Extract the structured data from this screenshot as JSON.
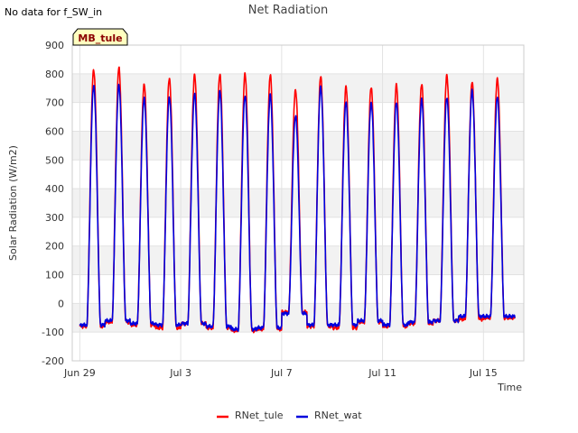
{
  "header": {
    "no_data_note": "No data for f_SW_in"
  },
  "chart_data": {
    "type": "line",
    "title": "Net Radiation",
    "xlabel": "Time",
    "ylabel": "Solar Radiation (W/m2)",
    "ylim": [
      -200,
      900
    ],
    "yticks": [
      -200,
      -100,
      0,
      100,
      200,
      300,
      400,
      500,
      600,
      700,
      800,
      900
    ],
    "xlim_days": [
      -0.3,
      17.6
    ],
    "xticks": [
      {
        "day": 0,
        "label": "Jun 29"
      },
      {
        "day": 4,
        "label": "Jul 3"
      },
      {
        "day": 8,
        "label": "Jul 7"
      },
      {
        "day": 12,
        "label": "Jul 11"
      },
      {
        "day": 16,
        "label": "Jul 15"
      }
    ],
    "grid": true,
    "band_style": "alternating grey horizontal bands",
    "site_badge": "MB_tule",
    "legend_position": "bottom-center",
    "series": [
      {
        "name": "RNet_tule",
        "color": "#ff0000",
        "daily_peaks": [
          815,
          820,
          765,
          785,
          795,
          800,
          800,
          795,
          745,
          790,
          755,
          755,
          760,
          765,
          795,
          770,
          785
        ],
        "night_values": [
          -80,
          -65,
          -75,
          -85,
          -70,
          -85,
          -95,
          -90,
          -30,
          -80,
          -85,
          -65,
          -80,
          -70,
          -60,
          -55,
          -50
        ]
      },
      {
        "name": "RNet_wat",
        "color": "#0000dd",
        "daily_peaks": [
          760,
          760,
          715,
          720,
          730,
          740,
          725,
          725,
          655,
          755,
          700,
          700,
          700,
          710,
          720,
          740,
          720
        ],
        "night_values": [
          -75,
          -60,
          -70,
          -75,
          -70,
          -80,
          -90,
          -85,
          -35,
          -75,
          -75,
          -60,
          -75,
          -65,
          -60,
          -45,
          -45
        ]
      }
    ]
  }
}
